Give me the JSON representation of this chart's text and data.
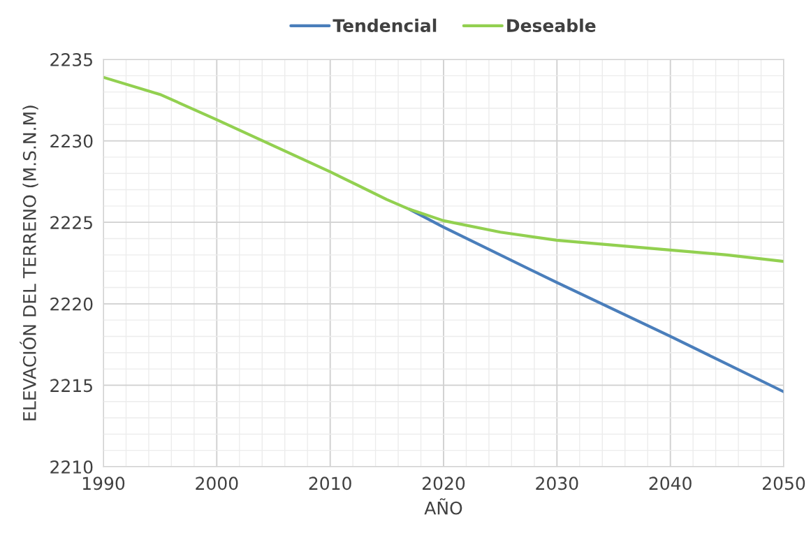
{
  "chart_data": {
    "type": "line",
    "xlabel": "AÑO",
    "ylabel": "ELEVACIÓN DEL TERRENO (M.S.N.M)",
    "series": [
      {
        "name": "Tendencial",
        "color": "#4a7ebb",
        "x": [
          2017,
          2020,
          2030,
          2040,
          2050
        ],
        "values": [
          2225.8,
          2224.7,
          2221.3,
          2218.0,
          2214.6
        ]
      },
      {
        "name": "Deseable",
        "color": "#92d050",
        "x": [
          1990,
          1995,
          2000,
          2005,
          2010,
          2015,
          2017,
          2020,
          2025,
          2030,
          2035,
          2040,
          2045,
          2050
        ],
        "values": [
          2233.9,
          2232.85,
          2231.3,
          2229.7,
          2228.1,
          2226.4,
          2225.8,
          2225.1,
          2224.4,
          2223.9,
          2223.6,
          2223.3,
          2223.0,
          2222.6
        ]
      }
    ],
    "xlim": [
      1990,
      2050
    ],
    "xticks": [
      1990,
      2000,
      2010,
      2020,
      2030,
      2040,
      2050
    ],
    "ylim": [
      2210,
      2235
    ],
    "yticks": [
      2210,
      2215,
      2220,
      2225,
      2230,
      2235
    ],
    "grid": true,
    "legend": "top",
    "marker": "none",
    "line_style": "solid"
  }
}
